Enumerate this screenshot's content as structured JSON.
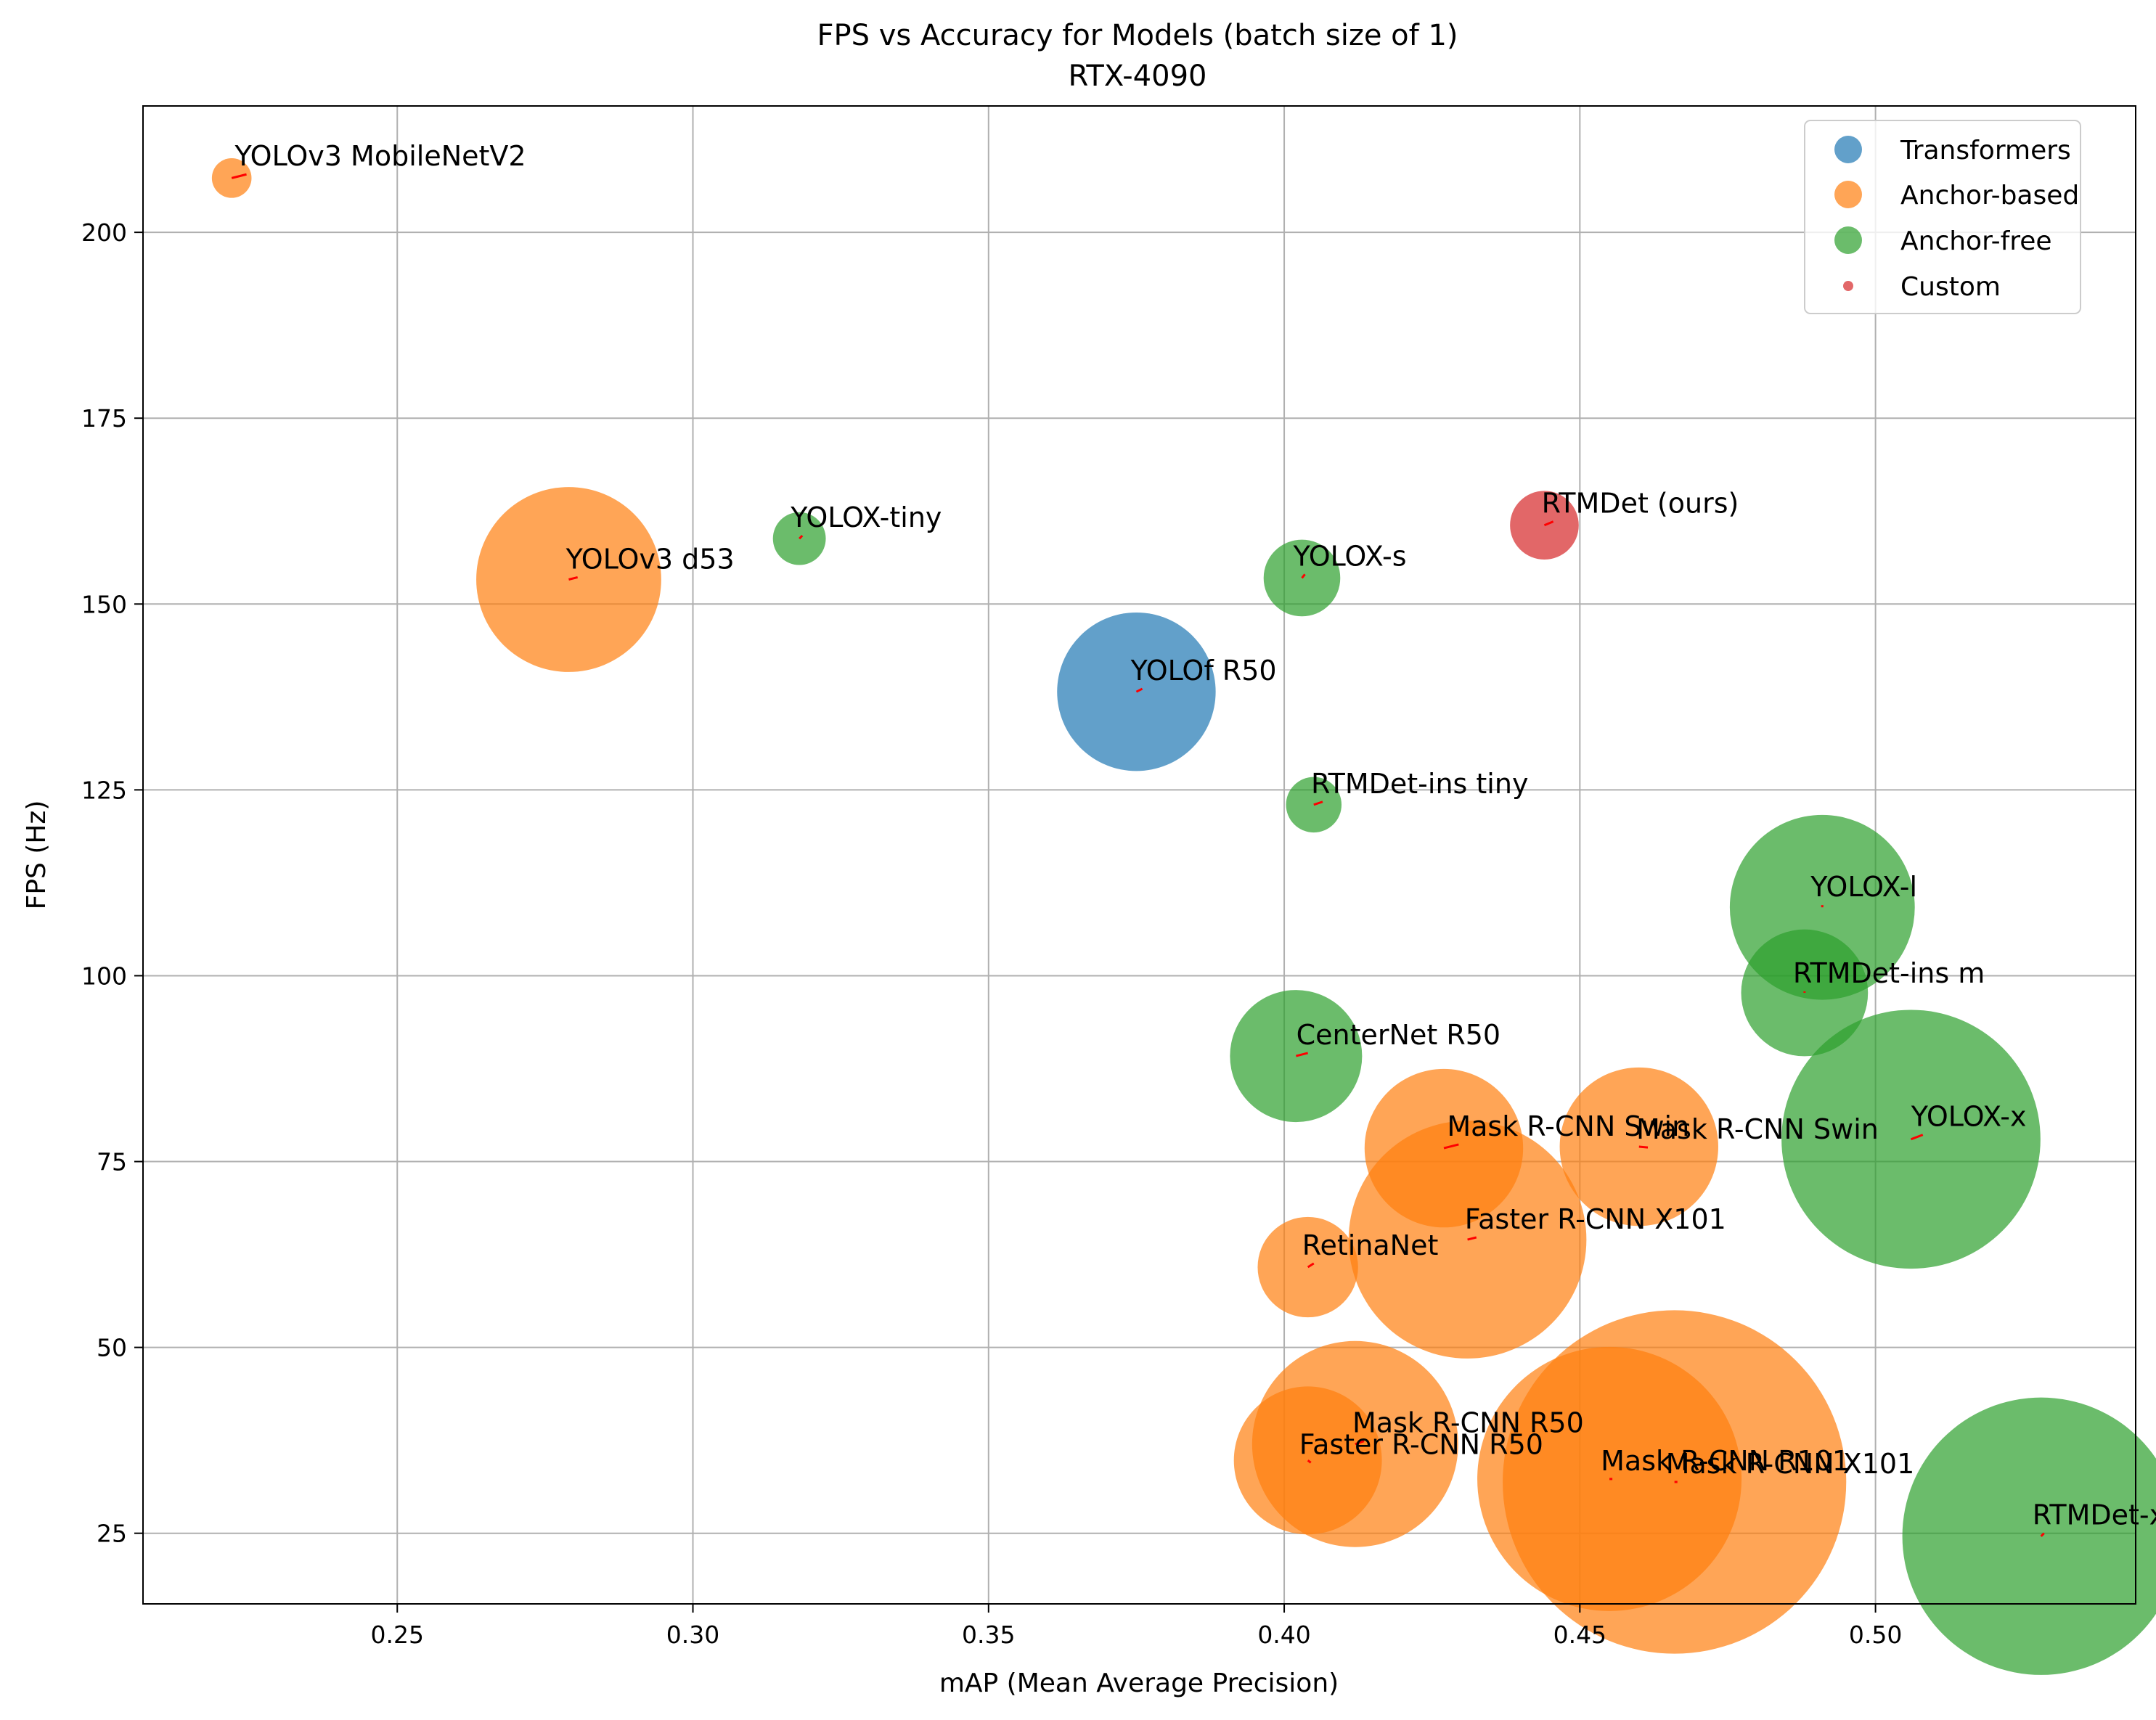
{
  "chart_data": {
    "type": "scatter",
    "title": "FPS vs Accuracy for Models (batch size of 1)",
    "subtitle": "RTX-4090",
    "xlabel": "mAP (Mean Average Precision)",
    "ylabel": "FPS (Hz)",
    "xlim": [
      0.207,
      0.544
    ],
    "ylim": [
      15.5,
      217.0
    ],
    "xticks": [
      0.25,
      0.3,
      0.35,
      0.4,
      0.45,
      0.5
    ],
    "xtick_labels": [
      "0.25",
      "0.30",
      "0.35",
      "0.40",
      "0.45",
      "0.50"
    ],
    "yticks": [
      25,
      50,
      75,
      100,
      125,
      150,
      175,
      200
    ],
    "ytick_labels": [
      "25",
      "50",
      "75",
      "100",
      "125",
      "150",
      "175",
      "200"
    ],
    "grid": true,
    "legend_position": "top-right",
    "categories": [
      {
        "name": "Transformers",
        "color": "#1f77b4"
      },
      {
        "name": "Anchor-based",
        "color": "#ff7f0e"
      },
      {
        "name": "Anchor-free",
        "color": "#2ca02c"
      },
      {
        "name": "Custom",
        "color": "#d62728"
      }
    ],
    "points": [
      {
        "label": "YOLOv3 MobileNetV2",
        "x": 0.222,
        "y": 207.3,
        "size": 1.5,
        "category": "Anchor-based",
        "lx": 0.2245,
        "ly": 207.8
      },
      {
        "label": "YOLOv3 d53",
        "x": 0.279,
        "y": 153.3,
        "size": 7.0,
        "category": "Anchor-based",
        "lx": 0.2805,
        "ly": 153.6
      },
      {
        "label": "YOLOX-tiny",
        "x": 0.318,
        "y": 158.8,
        "size": 2.0,
        "category": "Anchor-free",
        "lx": 0.3185,
        "ly": 159.2
      },
      {
        "label": "YOLOX-s",
        "x": 0.403,
        "y": 153.5,
        "size": 2.9,
        "category": "Anchor-free",
        "lx": 0.4035,
        "ly": 154.0
      },
      {
        "label": "RTMDet (ours)",
        "x": 0.444,
        "y": 160.6,
        "size": 2.6,
        "category": "Custom",
        "lx": 0.4455,
        "ly": 161.1
      },
      {
        "label": "YOLOf R50",
        "x": 0.375,
        "y": 138.2,
        "size": 6.0,
        "category": "Transformers",
        "lx": 0.376,
        "ly": 138.6
      },
      {
        "label": "RTMDet-ins tiny",
        "x": 0.405,
        "y": 123.0,
        "size": 2.1,
        "category": "Anchor-free",
        "lx": 0.4065,
        "ly": 123.4
      },
      {
        "label": "YOLOX-l",
        "x": 0.491,
        "y": 109.2,
        "size": 7.0,
        "category": "Anchor-free",
        "lx": 0.491,
        "ly": 109.5
      },
      {
        "label": "RTMDet-ins m",
        "x": 0.488,
        "y": 97.7,
        "size": 4.8,
        "category": "Anchor-free",
        "lx": 0.488,
        "ly": 97.9
      },
      {
        "label": "CenterNet R50",
        "x": 0.402,
        "y": 89.2,
        "size": 5.0,
        "category": "Anchor-free",
        "lx": 0.404,
        "ly": 89.6
      },
      {
        "label": "Mask R-CNN Swin",
        "x": 0.427,
        "y": 76.8,
        "size": 6.0,
        "category": "Anchor-based",
        "lx": 0.4295,
        "ly": 77.3
      },
      {
        "label": "Mask R-CNN Swin",
        "x": 0.46,
        "y": 77.0,
        "size": 6.0,
        "category": "Anchor-based",
        "lx": 0.4615,
        "ly": 76.9
      },
      {
        "label": "YOLOX-x",
        "x": 0.506,
        "y": 78.0,
        "size": 9.8,
        "category": "Anchor-free",
        "lx": 0.508,
        "ly": 78.6
      },
      {
        "label": "Faster R-CNN X101",
        "x": 0.431,
        "y": 64.5,
        "size": 9.0,
        "category": "Anchor-based",
        "lx": 0.4325,
        "ly": 64.8
      },
      {
        "label": "RetinaNet",
        "x": 0.404,
        "y": 60.8,
        "size": 3.8,
        "category": "Anchor-based",
        "lx": 0.405,
        "ly": 61.3
      },
      {
        "label": "Mask R-CNN R50",
        "x": 0.412,
        "y": 37.0,
        "size": 7.8,
        "category": "Anchor-based",
        "lx": 0.4135,
        "ly": 37.4
      },
      {
        "label": "Faster R-CNN R50",
        "x": 0.404,
        "y": 34.8,
        "size": 5.6,
        "category": "Anchor-based",
        "lx": 0.4045,
        "ly": 34.5
      },
      {
        "label": "Mask R-CNN R101",
        "x": 0.455,
        "y": 32.3,
        "size": 10.0,
        "category": "Anchor-based",
        "lx": 0.4555,
        "ly": 32.3
      },
      {
        "label": "Mask R-CNN X101",
        "x": 0.466,
        "y": 31.9,
        "size": 13.0,
        "category": "Anchor-based",
        "lx": 0.4665,
        "ly": 31.9
      },
      {
        "label": "RTMDet-x",
        "x": 0.528,
        "y": 24.6,
        "size": 10.5,
        "category": "Anchor-free",
        "lx": 0.5285,
        "ly": 25.0
      }
    ]
  }
}
